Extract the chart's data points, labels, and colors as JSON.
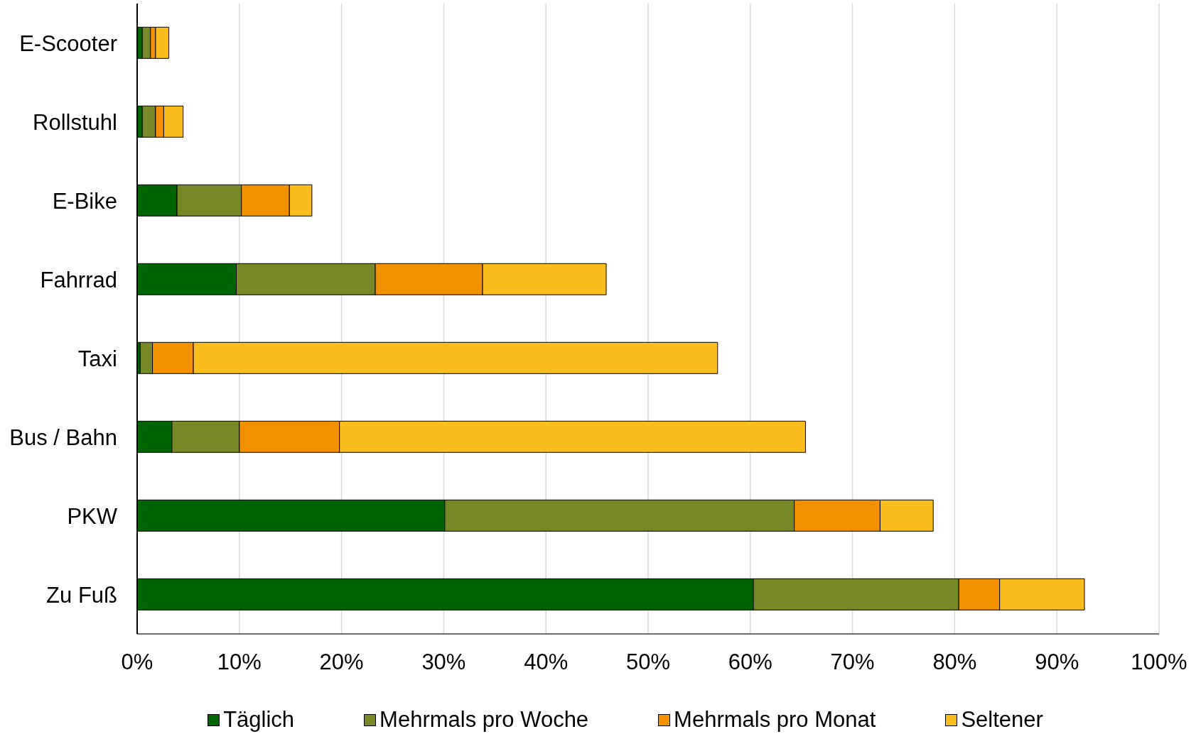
{
  "chart_data": {
    "type": "bar",
    "orientation": "horizontal",
    "stacked": true,
    "categories": [
      "E-Scooter",
      "Rollstuhl",
      "E-Bike",
      "Fahrrad",
      "Taxi",
      "Bus / Bahn",
      "PKW",
      "Zu Fuß"
    ],
    "series": [
      {
        "name": "Täglich",
        "color": "#006400",
        "values": [
          0.5,
          0.5,
          3.9,
          9.7,
          0.3,
          3.4,
          30.1,
          60.3
        ]
      },
      {
        "name": "Mehrmals pro Woche",
        "color": "#778827",
        "values": [
          0.8,
          1.3,
          6.3,
          13.6,
          1.2,
          6.6,
          34.2,
          20.1
        ]
      },
      {
        "name": "Mehrmals pro Monat",
        "color": "#f29100",
        "values": [
          0.5,
          0.8,
          4.7,
          10.5,
          4.0,
          9.8,
          8.4,
          4.0
        ]
      },
      {
        "name": "Seltener",
        "color": "#f9be1e",
        "values": [
          1.3,
          1.9,
          2.2,
          12.1,
          51.3,
          45.6,
          5.2,
          8.3
        ]
      }
    ],
    "xlim": [
      0,
      100
    ],
    "xticks": [
      {
        "value": 0,
        "label": "0%"
      },
      {
        "value": 10,
        "label": "10%"
      },
      {
        "value": 20,
        "label": "20%"
      },
      {
        "value": 30,
        "label": "30%"
      },
      {
        "value": 40,
        "label": "40%"
      },
      {
        "value": 50,
        "label": "50%"
      },
      {
        "value": 60,
        "label": "60%"
      },
      {
        "value": 70,
        "label": "70%"
      },
      {
        "value": 80,
        "label": "80%"
      },
      {
        "value": 90,
        "label": "90%"
      },
      {
        "value": 100,
        "label": "100%"
      }
    ],
    "grid": "x",
    "legend": "bottom"
  }
}
